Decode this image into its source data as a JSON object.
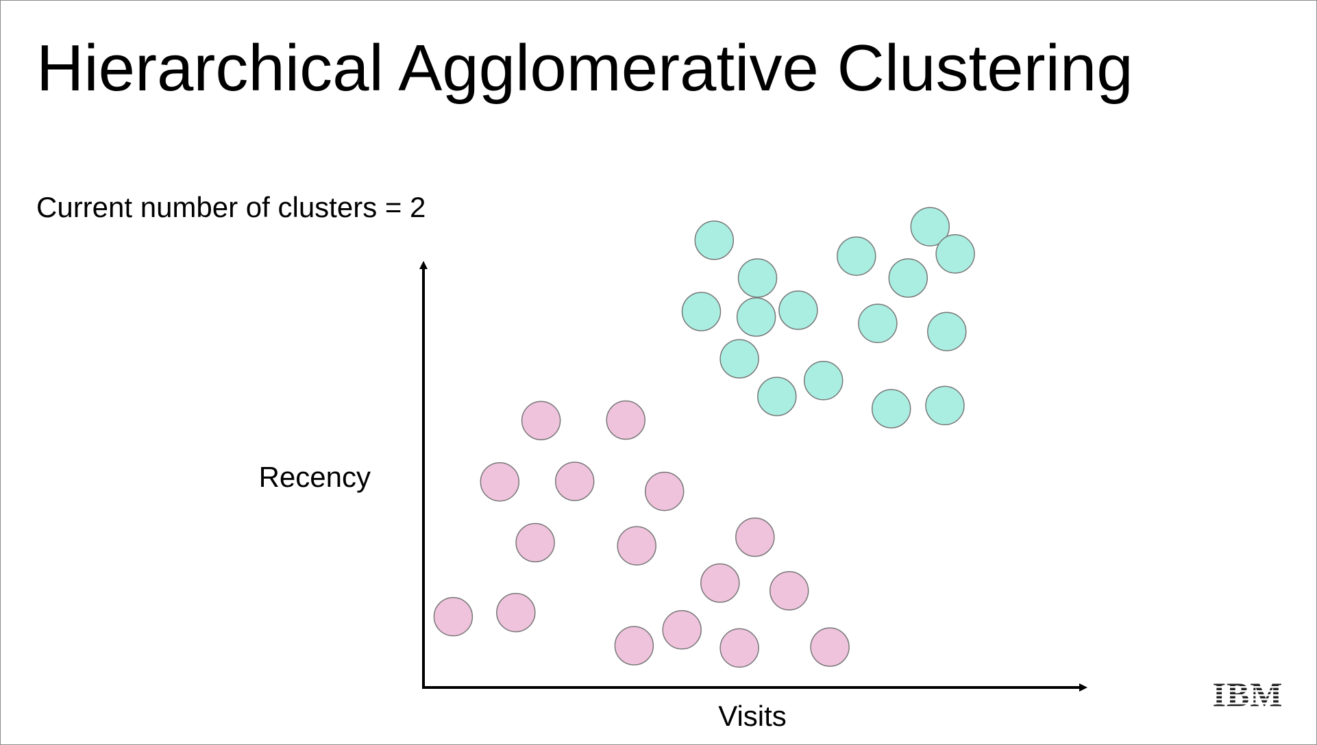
{
  "slide": {
    "title": "Hierarchical Agglomerative Clustering",
    "status_text": "Current number of clusters = 2",
    "logo_text": "IBM"
  },
  "chart_data": {
    "type": "scatter",
    "xlabel": "Visits",
    "ylabel": "Recency",
    "xlim": [
      0,
      1
    ],
    "ylim": [
      0,
      1
    ],
    "grid": false,
    "series": [
      {
        "color": "#aaeee2",
        "points": [
          [
            0.45,
            0.985
          ],
          [
            0.517,
            0.902
          ],
          [
            0.43,
            0.828
          ],
          [
            0.515,
            0.816
          ],
          [
            0.58,
            0.831
          ],
          [
            0.489,
            0.724
          ],
          [
            0.547,
            0.641
          ],
          [
            0.619,
            0.676
          ],
          [
            0.67,
            0.95
          ],
          [
            0.75,
            0.902
          ],
          [
            0.784,
            1.015
          ],
          [
            0.823,
            0.955
          ],
          [
            0.703,
            0.802
          ],
          [
            0.81,
            0.784
          ],
          [
            0.724,
            0.614
          ],
          [
            0.807,
            0.621
          ]
        ]
      },
      {
        "color": "#f0c3dd",
        "points": [
          [
            0.182,
            0.588
          ],
          [
            0.313,
            0.589
          ],
          [
            0.118,
            0.453
          ],
          [
            0.234,
            0.454
          ],
          [
            0.373,
            0.432
          ],
          [
            0.173,
            0.319
          ],
          [
            0.33,
            0.312
          ],
          [
            0.513,
            0.331
          ],
          [
            0.459,
            0.23
          ],
          [
            0.566,
            0.213
          ],
          [
            0.046,
            0.156
          ],
          [
            0.143,
            0.165
          ],
          [
            0.326,
            0.092
          ],
          [
            0.4,
            0.127
          ],
          [
            0.489,
            0.087
          ],
          [
            0.629,
            0.089
          ]
        ]
      }
    ]
  }
}
